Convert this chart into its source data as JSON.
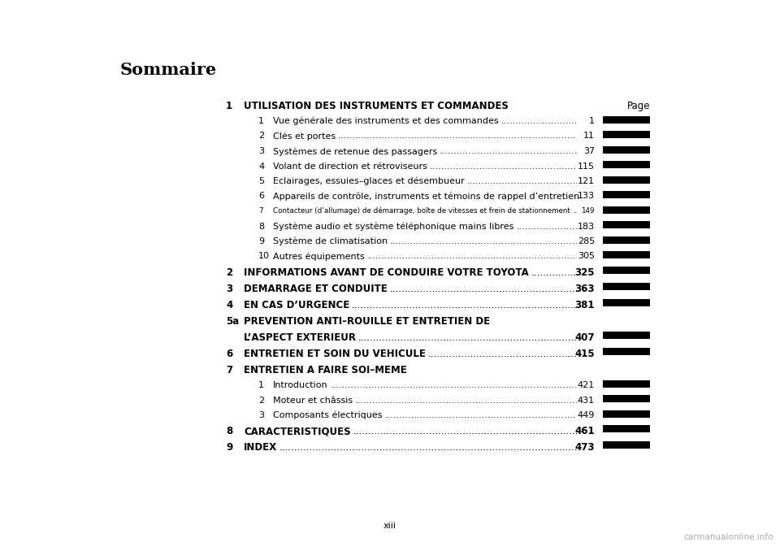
{
  "background_color": "#ffffff",
  "title": "Sommaire",
  "page_footer": "xiii",
  "watermark": "carmanualonline.info",
  "entries": [
    {
      "level": 1,
      "num": "1",
      "text": "UTILISATION DES INSTRUMENTS ET COMMANDES",
      "page": "Page",
      "is_header": true,
      "bold": true,
      "fsize": 8.5,
      "has_bar": false
    },
    {
      "level": 2,
      "num": "1",
      "text": "Vue générale des instruments et des commandes",
      "page": "1",
      "bold": false,
      "fsize": 8.0,
      "has_bar": true
    },
    {
      "level": 2,
      "num": "2",
      "text": "Clés et portes",
      "page": "11",
      "bold": false,
      "fsize": 8.0,
      "has_bar": true
    },
    {
      "level": 2,
      "num": "3",
      "text": "Systèmes de retenue des passagers",
      "page": "37",
      "bold": false,
      "fsize": 8.0,
      "has_bar": true
    },
    {
      "level": 2,
      "num": "4",
      "text": "Volant de direction et rétroviseurs",
      "page": "115",
      "bold": false,
      "fsize": 8.0,
      "has_bar": true
    },
    {
      "level": 2,
      "num": "5",
      "text": "Eclairages, essuies–glaces et désembueur",
      "page": "121",
      "bold": false,
      "fsize": 8.0,
      "has_bar": true
    },
    {
      "level": 2,
      "num": "6",
      "text": "Appareils de contrôle, instruments et témoins de rappel d’entretien",
      "page": "133",
      "bold": false,
      "fsize": 8.0,
      "has_bar": true
    },
    {
      "level": 2,
      "num": "7",
      "text": "Contacteur (d’allumage) de démarrage, boîte de vitesses et frein de stationnement",
      "page": "149",
      "bold": false,
      "fsize": 6.3,
      "has_bar": true
    },
    {
      "level": 2,
      "num": "8",
      "text": "Système audio et système téléphonique mains libres",
      "page": "183",
      "bold": false,
      "fsize": 8.0,
      "has_bar": true
    },
    {
      "level": 2,
      "num": "9",
      "text": "Système de climatisation",
      "page": "285",
      "bold": false,
      "fsize": 8.0,
      "has_bar": true
    },
    {
      "level": 2,
      "num": "10",
      "text": "Autres équipements",
      "page": "305",
      "bold": false,
      "fsize": 8.0,
      "has_bar": true
    },
    {
      "level": 1,
      "num": "2",
      "text": "INFORMATIONS AVANT DE CONDUIRE VOTRE TOYOTA",
      "page": "325",
      "bold": true,
      "fsize": 8.5,
      "has_bar": true
    },
    {
      "level": 1,
      "num": "3",
      "text": "DEMARRAGE ET CONDUITE",
      "page": "363",
      "bold": true,
      "fsize": 8.5,
      "has_bar": true
    },
    {
      "level": 1,
      "num": "4",
      "text": "EN CAS D’URGENCE",
      "page": "381",
      "bold": true,
      "fsize": 8.5,
      "has_bar": true
    },
    {
      "level": 1,
      "num": "5a",
      "text": "PREVENTION ANTI–ROUILLE ET ENTRETIEN DE",
      "page": "",
      "bold": true,
      "fsize": 8.5,
      "has_bar": false
    },
    {
      "level": 1,
      "num": "",
      "text": "L’ASPECT EXTERIEUR",
      "page": "407",
      "bold": true,
      "fsize": 8.5,
      "has_bar": true
    },
    {
      "level": 1,
      "num": "6",
      "text": "ENTRETIEN ET SOIN DU VEHICULE",
      "page": "415",
      "bold": true,
      "fsize": 8.5,
      "has_bar": true
    },
    {
      "level": 1,
      "num": "7",
      "text": "ENTRETIEN A FAIRE SOI–MEME",
      "page": "",
      "bold": true,
      "fsize": 8.5,
      "has_bar": false,
      "no_dots": true
    },
    {
      "level": 2,
      "num": "1",
      "text": "Introduction",
      "page": "421",
      "bold": false,
      "fsize": 8.0,
      "has_bar": true
    },
    {
      "level": 2,
      "num": "2",
      "text": "Moteur et châssis",
      "page": "431",
      "bold": false,
      "fsize": 8.0,
      "has_bar": true
    },
    {
      "level": 2,
      "num": "3",
      "text": "Composants électriques",
      "page": "449",
      "bold": false,
      "fsize": 8.0,
      "has_bar": true
    },
    {
      "level": 1,
      "num": "8",
      "text": "CARACTERISTIQUES",
      "page": "461",
      "bold": true,
      "fsize": 8.5,
      "has_bar": true
    },
    {
      "level": 1,
      "num": "9",
      "text": "INDEX",
      "page": "473",
      "bold": true,
      "fsize": 8.5,
      "has_bar": true
    }
  ]
}
